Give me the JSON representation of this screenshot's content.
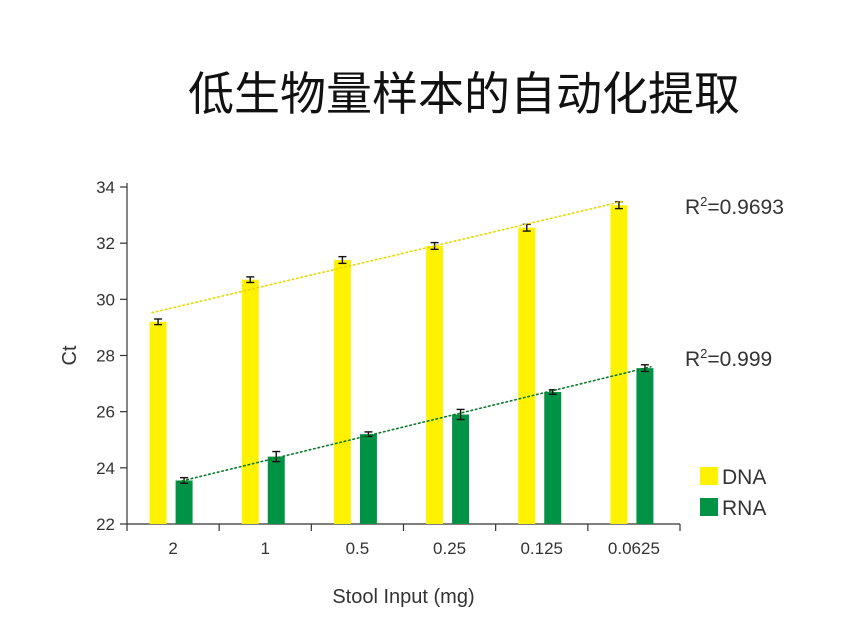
{
  "chart_data": {
    "type": "bar",
    "title": "低生物量样本的自动化提取",
    "xlabel": "Stool Input (mg)",
    "ylabel": "Ct",
    "ylim": [
      22,
      34
    ],
    "yticks": [
      22,
      24,
      26,
      28,
      30,
      32,
      34
    ],
    "categories": [
      "2",
      "1",
      "0.5",
      "0.25",
      "0.125",
      "0.0625"
    ],
    "series": [
      {
        "name": "DNA",
        "color": "#fff200",
        "values": [
          29.2,
          30.7,
          31.4,
          31.9,
          32.55,
          33.35
        ],
        "errors": [
          0.1,
          0.1,
          0.12,
          0.12,
          0.12,
          0.12
        ],
        "trend_color": "#e8d800"
      },
      {
        "name": "RNA",
        "color": "#009245",
        "values": [
          23.55,
          24.4,
          25.2,
          25.9,
          26.7,
          27.55
        ],
        "errors": [
          0.1,
          0.18,
          0.08,
          0.18,
          0.08,
          0.12
        ],
        "trend_color": "#0a7a2a"
      }
    ],
    "annotations": [
      {
        "base": "R",
        "sup": "2",
        "rest": "=0.9693",
        "series": "DNA"
      },
      {
        "base": "R",
        "sup": "2",
        "rest": "=0.999",
        "series": "RNA"
      }
    ],
    "legend": "right",
    "grid": false
  }
}
